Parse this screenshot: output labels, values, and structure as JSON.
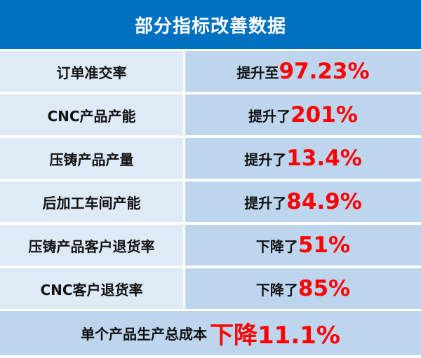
{
  "title": "部分指标改善数据",
  "rows": [
    {
      "label": "订单准交率",
      "prefix": "提升至",
      "value": "97.23%"
    },
    {
      "label": "CNC产品产能",
      "prefix": "提升了",
      "value": "201%"
    },
    {
      "label": "压铸产品产量",
      "prefix": "提升了",
      "value": "13.4%"
    },
    {
      "label": "后加工车间产能",
      "prefix": "提升了",
      "value": "84.9%"
    },
    {
      "label": "压铸产品客户退货率",
      "prefix": "下降了",
      "value": "51%"
    },
    {
      "label": "CNC客户退货率",
      "prefix": "下降了",
      "value": "85%"
    }
  ],
  "footer": {
    "label": "单个产品生产总成本",
    "value": "下降11.1%"
  },
  "colors": {
    "header": "#0070c0",
    "left_cell": "#deeaf6",
    "right_cell": "#bdd6ee",
    "highlight": "#ff0000"
  }
}
